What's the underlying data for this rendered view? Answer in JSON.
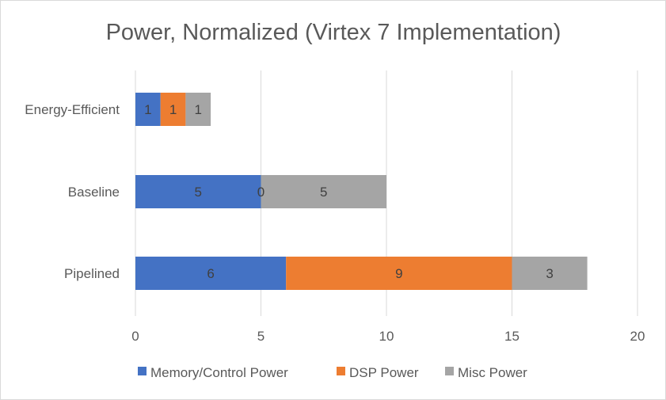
{
  "chart_data": {
    "type": "bar",
    "orientation": "horizontal",
    "stacked": true,
    "title": "Power, Normalized (Virtex 7 Implementation)",
    "categories": [
      "Energy-Efficient",
      "Baseline",
      "Pipelined"
    ],
    "series": [
      {
        "name": "Memory/Control Power",
        "color": "#4472C4",
        "values": [
          1,
          5,
          6
        ],
        "labels": [
          "1",
          "5",
          "6"
        ]
      },
      {
        "name": "DSP Power",
        "color": "#ED7D31",
        "values": [
          1,
          0,
          9
        ],
        "labels": [
          "1",
          "0",
          "9"
        ]
      },
      {
        "name": "Misc Power",
        "color": "#A5A5A5",
        "values": [
          1,
          5,
          3
        ],
        "labels": [
          "1",
          "5",
          "3"
        ]
      }
    ],
    "xlim": [
      0,
      20
    ],
    "x_ticks": [
      "0",
      "5",
      "10",
      "15",
      "20"
    ],
    "grid": true,
    "legend_position": "bottom",
    "colors": {
      "grid": "#d9d9d9",
      "text": "#595959"
    }
  }
}
